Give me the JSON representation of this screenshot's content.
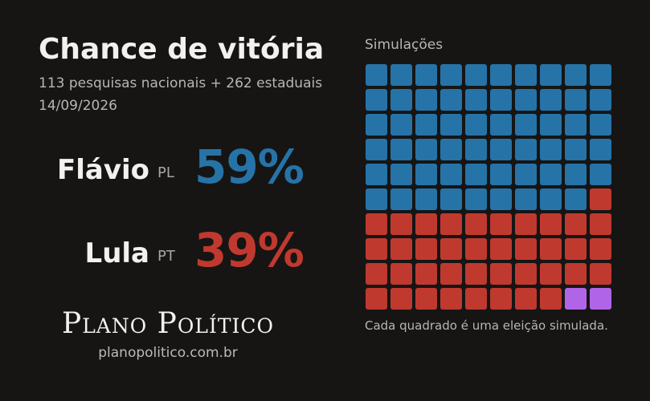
{
  "header": {
    "title": "Chance de vitória",
    "subtitle": "113 pesquisas nacionais + 262 estaduais",
    "date": "14/09/2026"
  },
  "candidates": [
    {
      "name": "Flávio",
      "party": "PL",
      "pct_label": "59%",
      "color": "#2673a8"
    },
    {
      "name": "Lula",
      "party": "PT",
      "pct_label": "39%",
      "color": "#c0392f"
    }
  ],
  "brand": {
    "name": "Plano Político",
    "url": "planopolitico.com.br"
  },
  "chart_data": {
    "type": "waffle",
    "title": "Simulações",
    "caption": "Cada quadrado é uma eleição simulada.",
    "rows": 10,
    "cols": 10,
    "categories": [
      {
        "party": "PL",
        "count": 59,
        "color": "#2673a8"
      },
      {
        "party": "PT",
        "count": 39,
        "color": "#c0392f"
      },
      {
        "party": "",
        "count": 2,
        "color": "#b065e8"
      }
    ]
  }
}
